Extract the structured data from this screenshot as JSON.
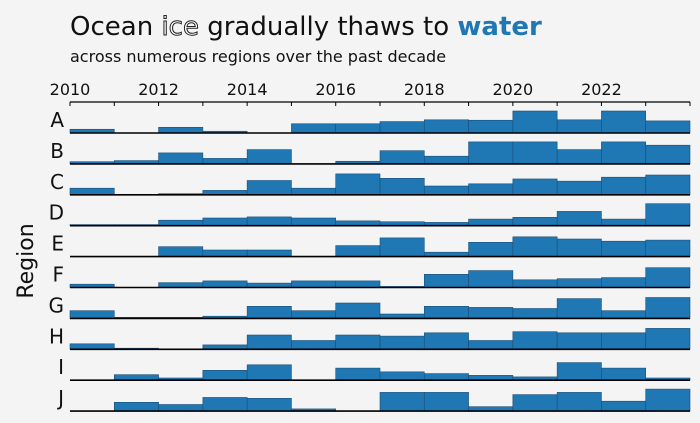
{
  "title": {
    "prefix": "Ocean ",
    "outline_word": "ice",
    "middle": " gradually thaws to ",
    "accent_word": "water"
  },
  "subtitle": "across numerous regions over the past decade",
  "colors": {
    "bar": "#1f77b4",
    "bar_edge": "#1a4f7a",
    "accent": "#1f77b4",
    "background": "#f4f4f4",
    "axis": "#000000"
  },
  "chart_data": {
    "type": "bar",
    "title": "Ocean ice gradually thaws to water",
    "subtitle": "across numerous regions over the past decade",
    "xlabel": "",
    "ylabel": "Region",
    "x_tick_labels": [
      "2010",
      "2012",
      "2014",
      "2016",
      "2018",
      "2020",
      "2022"
    ],
    "x_tick_years": [
      2010,
      2012,
      2014,
      2016,
      2018,
      2020,
      2022
    ],
    "xlim": [
      2010,
      2024
    ],
    "years": [
      2010,
      2011,
      2012,
      2013,
      2014,
      2015,
      2016,
      2017,
      2018,
      2019,
      2020,
      2021,
      2022,
      2023
    ],
    "ylim_per_panel": [
      0,
      1
    ],
    "series": [
      {
        "name": "A",
        "values": [
          0.17,
          0,
          0.26,
          0.08,
          0,
          0.42,
          0.42,
          0.52,
          0.6,
          0.58,
          1.0,
          0.6,
          1.0,
          0.55
        ]
      },
      {
        "name": "B",
        "values": [
          0.1,
          0.15,
          0.5,
          0.25,
          0.65,
          0,
          0.12,
          0.6,
          0.35,
          1.0,
          1.0,
          0.65,
          1.0,
          0.85
        ]
      },
      {
        "name": "C",
        "values": [
          0.3,
          0,
          0.05,
          0.2,
          0.65,
          0.3,
          0.95,
          0.75,
          0.4,
          0.5,
          0.72,
          0.62,
          0.8,
          0.9
        ]
      },
      {
        "name": "D",
        "values": [
          0.05,
          0.05,
          0.25,
          0.35,
          0.4,
          0.35,
          0.22,
          0.18,
          0.15,
          0.3,
          0.38,
          0.65,
          0.3,
          1.0
        ]
      },
      {
        "name": "E",
        "values": [
          0,
          0,
          0.45,
          0.3,
          0.3,
          0,
          0.5,
          0.85,
          0.2,
          0.65,
          0.9,
          0.8,
          0.7,
          0.75
        ]
      },
      {
        "name": "F",
        "values": [
          0.15,
          0,
          0.22,
          0.3,
          0.2,
          0.3,
          0.3,
          0.05,
          0.6,
          0.77,
          0.35,
          0.4,
          0.45,
          0.9
        ]
      },
      {
        "name": "G",
        "values": [
          0.35,
          0.05,
          0.05,
          0.1,
          0.55,
          0.35,
          0.7,
          0.2,
          0.55,
          0.5,
          0.45,
          0.9,
          0.35,
          0.95
        ]
      },
      {
        "name": "H",
        "values": [
          0.25,
          0.05,
          0,
          0.2,
          0.65,
          0.4,
          0.65,
          0.6,
          0.75,
          0.4,
          0.8,
          0.75,
          0.75,
          0.95
        ]
      },
      {
        "name": "I",
        "values": [
          0,
          0.25,
          0.1,
          0.45,
          0.7,
          0,
          0.55,
          0.38,
          0.3,
          0.22,
          0.15,
          0.8,
          0.55,
          0.1
        ]
      },
      {
        "name": "J",
        "values": [
          0,
          0.4,
          0.3,
          0.62,
          0.58,
          0.1,
          0,
          0.85,
          0.85,
          0.2,
          0.75,
          0.85,
          0.45,
          1.0
        ]
      }
    ]
  }
}
